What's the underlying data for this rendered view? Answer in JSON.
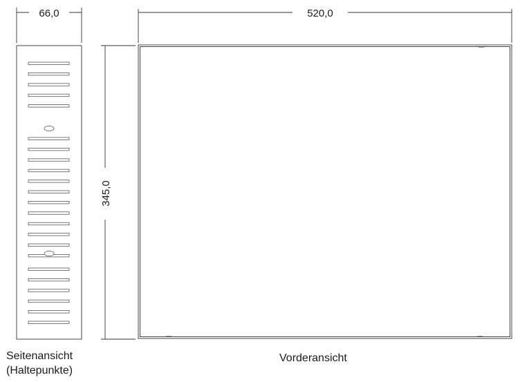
{
  "dimensions": {
    "side_width": "66,0",
    "front_width": "520,0",
    "height": "345,0"
  },
  "captions": {
    "side_view_line1": "Seitenansicht",
    "side_view_line2": "(Haltepunkte)",
    "front_view": "Vorderansicht"
  },
  "side_view": {
    "slot_groups": [
      5,
      12,
      6
    ],
    "holding_points": 2
  }
}
